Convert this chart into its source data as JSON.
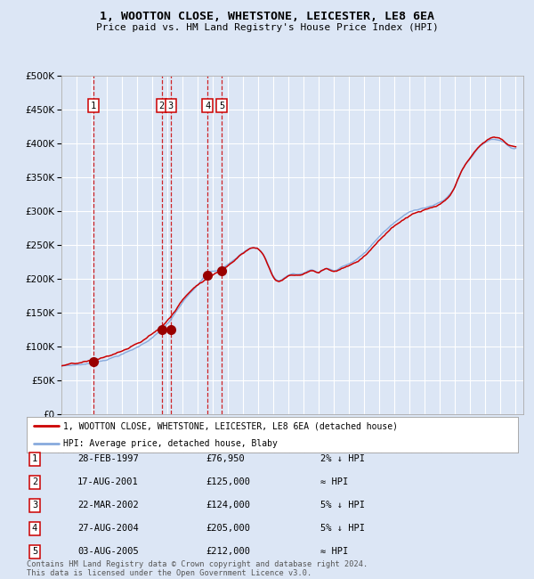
{
  "title": "1, WOOTTON CLOSE, WHETSTONE, LEICESTER, LE8 6EA",
  "subtitle": "Price paid vs. HM Land Registry's House Price Index (HPI)",
  "legend_line1": "1, WOOTTON CLOSE, WHETSTONE, LEICESTER, LE8 6EA (detached house)",
  "legend_line2": "HPI: Average price, detached house, Blaby",
  "footer": "Contains HM Land Registry data © Crown copyright and database right 2024.\nThis data is licensed under the Open Government Licence v3.0.",
  "transactions": [
    {
      "num": 1,
      "date": "28-FEB-1997",
      "year": 1997.12,
      "price": 76950,
      "relation": "2% ↓ HPI"
    },
    {
      "num": 2,
      "date": "17-AUG-2001",
      "year": 2001.62,
      "price": 125000,
      "relation": "≈ HPI"
    },
    {
      "num": 3,
      "date": "22-MAR-2002",
      "year": 2002.22,
      "price": 124000,
      "relation": "5% ↓ HPI"
    },
    {
      "num": 4,
      "date": "27-AUG-2004",
      "year": 2004.65,
      "price": 205000,
      "relation": "5% ↓ HPI"
    },
    {
      "num": 5,
      "date": "03-AUG-2005",
      "year": 2005.58,
      "price": 212000,
      "relation": "≈ HPI"
    }
  ],
  "background_color": "#dce6f5",
  "plot_bg_color": "#dce6f5",
  "grid_color": "#ffffff",
  "line_color_red": "#cc0000",
  "line_color_blue": "#88aadd",
  "marker_color": "#990000",
  "vline_color": "#cc0000",
  "ylim": [
    0,
    500000
  ],
  "yticks": [
    0,
    50000,
    100000,
    150000,
    200000,
    250000,
    300000,
    350000,
    400000,
    450000,
    500000
  ],
  "xmin": 1995.0,
  "xmax": 2025.5,
  "xticks": [
    1995,
    1996,
    1997,
    1998,
    1999,
    2000,
    2001,
    2002,
    2003,
    2004,
    2005,
    2006,
    2007,
    2008,
    2009,
    2010,
    2011,
    2012,
    2013,
    2014,
    2015,
    2016,
    2017,
    2018,
    2019,
    2020,
    2021,
    2022,
    2023,
    2024,
    2025
  ]
}
